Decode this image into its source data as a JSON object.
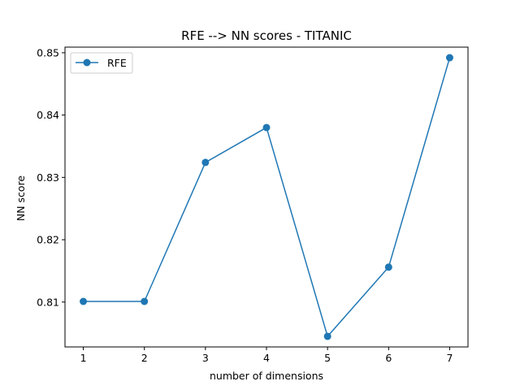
{
  "chart_data": {
    "type": "line",
    "title": "RFE --> NN scores - TITANIC",
    "xlabel": "number of dimensions",
    "ylabel": "NN score",
    "x": [
      1,
      2,
      3,
      4,
      5,
      6,
      7
    ],
    "series": [
      {
        "name": "RFE",
        "color": "#1f77b4",
        "marker": "circle",
        "values": [
          0.8101,
          0.8101,
          0.8324,
          0.838,
          0.8045,
          0.8156,
          0.8492
        ]
      }
    ],
    "xticks": [
      "1",
      "2",
      "3",
      "4",
      "5",
      "6",
      "7"
    ],
    "yticks": [
      "0.81",
      "0.82",
      "0.83",
      "0.84",
      "0.85"
    ],
    "ytick_values": [
      0.81,
      0.82,
      0.83,
      0.84,
      0.85
    ],
    "xlim": [
      0.7,
      7.3
    ],
    "ylim": [
      0.8028,
      0.8509
    ],
    "grid": false,
    "legend_position": "upper-left"
  }
}
